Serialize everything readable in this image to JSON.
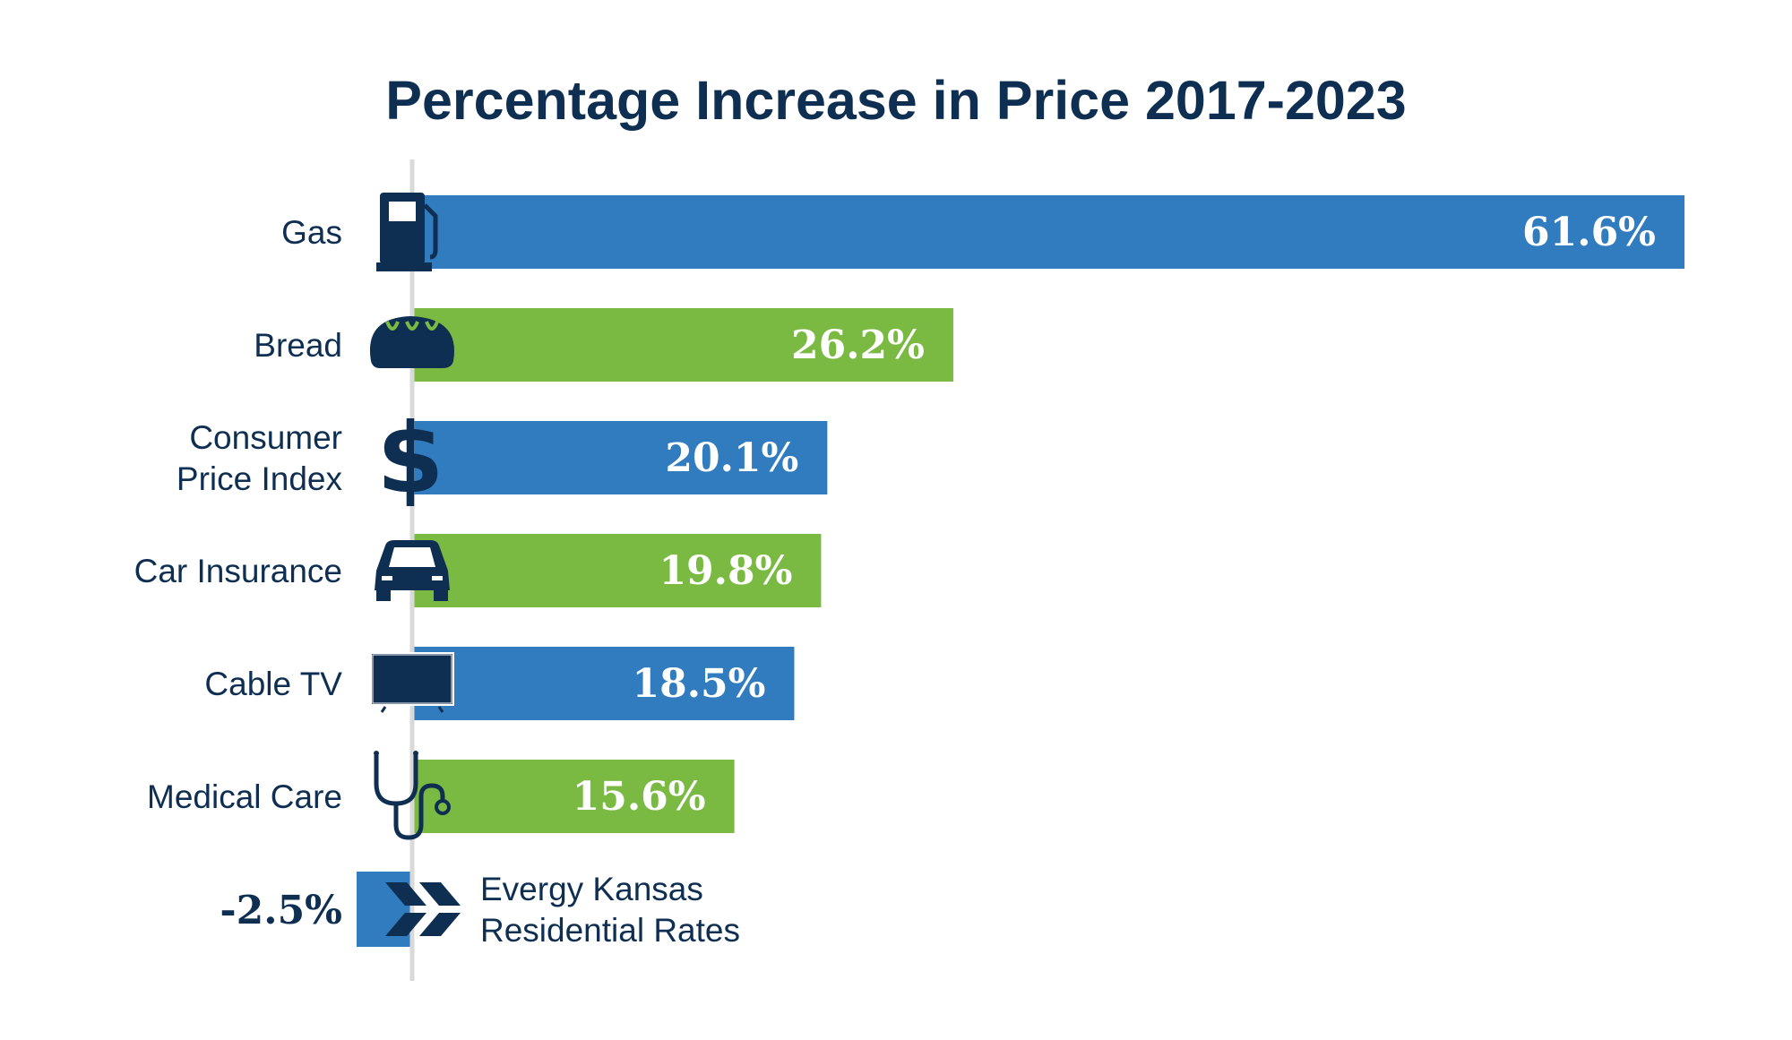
{
  "chart_data": {
    "type": "bar",
    "orientation": "horizontal",
    "title": "Percentage Increase in Price 2017-2023",
    "categories": [
      "Gas",
      "Bread",
      "Consumer Price Index",
      "Car Insurance",
      "Cable TV",
      "Medical Care"
    ],
    "category_lines": [
      [
        "Gas"
      ],
      [
        "Bread"
      ],
      [
        "Consumer",
        "Price Index"
      ],
      [
        "Car Insurance"
      ],
      [
        "Cable TV"
      ],
      [
        "Medical Care"
      ]
    ],
    "values": [
      61.6,
      26.2,
      20.1,
      19.8,
      18.5,
      15.6
    ],
    "value_labels": [
      "61.6%",
      "26.2%",
      "20.1%",
      "19.8%",
      "18.5%",
      "15.6%"
    ],
    "icons": [
      "gas-pump-icon",
      "bread-icon",
      "dollar-sign-icon",
      "car-icon",
      "tv-icon",
      "stethoscope-icon"
    ],
    "bar_colors": [
      "#317bbf",
      "#7aba42",
      "#317bbf",
      "#7aba42",
      "#317bbf",
      "#7aba42"
    ],
    "xlim": [
      0,
      61.6
    ],
    "grid": false,
    "annotation": {
      "value": -2.5,
      "value_label": "-2.5%",
      "lines": [
        "Evergy Kansas",
        "Residential Rates"
      ],
      "icon": "evergy-logo-icon",
      "color": "#317bbf"
    }
  },
  "colors": {
    "title": "#0f2f52",
    "text": "#0f2f52",
    "icon": "#0f2f52",
    "axis": "#d9d9d9",
    "blue": "#317bbf",
    "green": "#7aba42"
  }
}
